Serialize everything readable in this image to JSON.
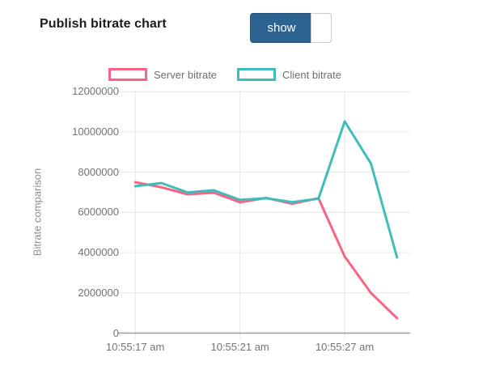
{
  "header": {
    "title": "Publish bitrate chart",
    "toggle": {
      "on_label": "show",
      "state": "on",
      "on_color": "#2d6391"
    }
  },
  "chart_data": {
    "type": "line",
    "title": "",
    "xlabel": "",
    "ylabel": "Bitrate comparison",
    "ylim": [
      0,
      12000000
    ],
    "y_tick_labels": [
      "12000000",
      "10000000",
      "8000000",
      "6000000",
      "4000000",
      "2000000",
      "0"
    ],
    "x_tick_labels": [
      "10:55:17 am",
      "10:55:21 am",
      "10:55:27 am"
    ],
    "x_tick_indices": [
      0,
      4,
      8
    ],
    "n_points": 11,
    "grid": true,
    "legend_position": "top",
    "series": [
      {
        "name": "Server bitrate",
        "color": "#fa6383",
        "values": [
          7500000,
          7250000,
          6900000,
          6980000,
          6500000,
          6720000,
          6430000,
          6700000,
          3800000,
          2000000,
          740000
        ]
      },
      {
        "name": "Client bitrate",
        "color": "#41bcbc",
        "values": [
          7300000,
          7460000,
          6990000,
          7100000,
          6620000,
          6700000,
          6510000,
          6680000,
          10520000,
          8430000,
          3760000
        ]
      }
    ]
  }
}
